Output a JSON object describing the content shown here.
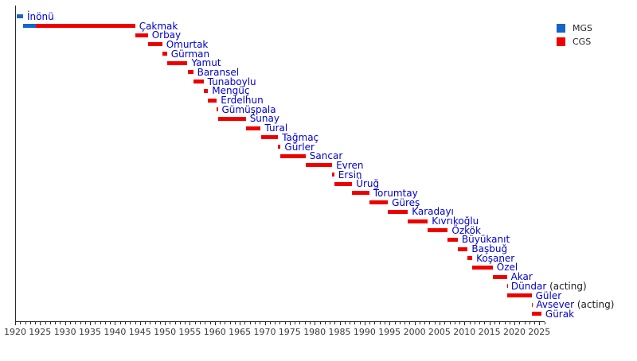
{
  "chart_data": {
    "type": "bar",
    "variant": "horizontal-timeline-gantt",
    "title": "",
    "xlabel": "",
    "ylabel": "",
    "grid": false,
    "xlim": [
      1920,
      2026
    ],
    "x_major_tick_step": 5,
    "x_minor_tick_step": 1,
    "x_major_tick_labels": [
      "1920",
      "1925",
      "1930",
      "1935",
      "1940",
      "1945",
      "1950",
      "1955",
      "1960",
      "1965",
      "1970",
      "1975",
      "1980",
      "1985",
      "1990",
      "1995",
      "2000",
      "2005",
      "2010",
      "2015",
      "2020",
      "2025"
    ],
    "colors": {
      "mgs": "#1565c8",
      "cgs": "#ee0000",
      "name_text": "#0000cc",
      "suffix_text": "#1a1a1a",
      "axis": "#2a2a2a",
      "tick_text": "#3a3a3a",
      "background": "#ffffff"
    },
    "legend": {
      "position": "top-right",
      "entries": [
        {
          "label": "MGS",
          "color": "#1565c8"
        },
        {
          "label": "CGS",
          "color": "#ee0000"
        }
      ]
    },
    "rows": [
      {
        "name": "İnönü",
        "suffix": "",
        "segments": [
          {
            "type": "MGS",
            "start": 1920.35,
            "end": 1921.6
          }
        ]
      },
      {
        "name": "Çakmak",
        "suffix": "",
        "segments": [
          {
            "type": "MGS",
            "start": 1921.6,
            "end": 1924.17
          },
          {
            "type": "CGS",
            "start": 1924.17,
            "end": 1944.04
          }
        ]
      },
      {
        "name": "Orbay",
        "suffix": "",
        "segments": [
          {
            "type": "CGS",
            "start": 1944.04,
            "end": 1946.58
          }
        ]
      },
      {
        "name": "Omurtak",
        "suffix": "",
        "segments": [
          {
            "type": "CGS",
            "start": 1946.58,
            "end": 1949.45
          }
        ]
      },
      {
        "name": "Gürman",
        "suffix": "",
        "segments": [
          {
            "type": "CGS",
            "start": 1949.45,
            "end": 1950.43
          }
        ]
      },
      {
        "name": "Yamut",
        "suffix": "",
        "segments": [
          {
            "type": "CGS",
            "start": 1950.43,
            "end": 1954.53
          }
        ]
      },
      {
        "name": "Baransel",
        "suffix": "",
        "segments": [
          {
            "type": "CGS",
            "start": 1954.53,
            "end": 1955.66
          }
        ]
      },
      {
        "name": "Tunaboylu",
        "suffix": "",
        "segments": [
          {
            "type": "CGS",
            "start": 1955.66,
            "end": 1957.73
          }
        ]
      },
      {
        "name": "Mengüç",
        "suffix": "",
        "segments": [
          {
            "type": "CGS",
            "start": 1957.73,
            "end": 1958.64
          }
        ]
      },
      {
        "name": "Erdelhun",
        "suffix": "",
        "segments": [
          {
            "type": "CGS",
            "start": 1958.64,
            "end": 1960.4
          }
        ]
      },
      {
        "name": "Gümüşpala",
        "suffix": "",
        "segments": [
          {
            "type": "CGS",
            "start": 1960.42,
            "end": 1960.59
          }
        ]
      },
      {
        "name": "Sunay",
        "suffix": "",
        "segments": [
          {
            "type": "CGS",
            "start": 1960.59,
            "end": 1966.21
          }
        ]
      },
      {
        "name": "Tural",
        "suffix": "",
        "segments": [
          {
            "type": "CGS",
            "start": 1966.21,
            "end": 1969.21
          }
        ]
      },
      {
        "name": "Tağmaç",
        "suffix": "",
        "segments": [
          {
            "type": "CGS",
            "start": 1969.21,
            "end": 1972.66
          }
        ]
      },
      {
        "name": "Gürler",
        "suffix": "",
        "segments": [
          {
            "type": "CGS",
            "start": 1972.66,
            "end": 1973.18
          }
        ]
      },
      {
        "name": "Sancar",
        "suffix": "",
        "segments": [
          {
            "type": "CGS",
            "start": 1973.18,
            "end": 1978.18
          }
        ]
      },
      {
        "name": "Evren",
        "suffix": "",
        "segments": [
          {
            "type": "CGS",
            "start": 1978.18,
            "end": 1983.5
          }
        ]
      },
      {
        "name": "Ersin",
        "suffix": "",
        "segments": [
          {
            "type": "CGS",
            "start": 1983.5,
            "end": 1983.93
          }
        ]
      },
      {
        "name": "Üruğ",
        "suffix": "",
        "segments": [
          {
            "type": "CGS",
            "start": 1983.93,
            "end": 1987.5
          }
        ]
      },
      {
        "name": "Torumtay",
        "suffix": "",
        "segments": [
          {
            "type": "CGS",
            "start": 1987.5,
            "end": 1990.92
          }
        ]
      },
      {
        "name": "Güreş",
        "suffix": "",
        "segments": [
          {
            "type": "CGS",
            "start": 1990.92,
            "end": 1994.66
          }
        ]
      },
      {
        "name": "Karadayı",
        "suffix": "",
        "segments": [
          {
            "type": "CGS",
            "start": 1994.66,
            "end": 1998.66
          }
        ]
      },
      {
        "name": "Kıvrıkoğlu",
        "suffix": "",
        "segments": [
          {
            "type": "CGS",
            "start": 1998.66,
            "end": 2002.66
          }
        ]
      },
      {
        "name": "Özkök",
        "suffix": "",
        "segments": [
          {
            "type": "CGS",
            "start": 2002.66,
            "end": 2006.66
          }
        ]
      },
      {
        "name": "Büyükanıt",
        "suffix": "",
        "segments": [
          {
            "type": "CGS",
            "start": 2006.66,
            "end": 2008.66
          }
        ]
      },
      {
        "name": "Başbuğ",
        "suffix": "",
        "segments": [
          {
            "type": "CGS",
            "start": 2008.66,
            "end": 2010.65
          }
        ]
      },
      {
        "name": "Koşaner",
        "suffix": "",
        "segments": [
          {
            "type": "CGS",
            "start": 2010.65,
            "end": 2011.57
          }
        ]
      },
      {
        "name": "Özel",
        "suffix": "",
        "segments": [
          {
            "type": "CGS",
            "start": 2011.59,
            "end": 2015.66
          }
        ]
      },
      {
        "name": "Akar",
        "suffix": "",
        "segments": [
          {
            "type": "CGS",
            "start": 2015.66,
            "end": 2018.5
          }
        ]
      },
      {
        "name": "Dündar",
        "suffix": " (acting)",
        "segments": [
          {
            "type": "CGS",
            "start": 2018.5,
            "end": 2018.55
          }
        ]
      },
      {
        "name": "Güler",
        "suffix": "",
        "segments": [
          {
            "type": "CGS",
            "start": 2018.55,
            "end": 2023.44
          }
        ]
      },
      {
        "name": "Avsever",
        "suffix": " (acting)",
        "segments": [
          {
            "type": "CGS",
            "start": 2023.44,
            "end": 2023.58
          }
        ]
      },
      {
        "name": "Gürak",
        "suffix": "",
        "segments": [
          {
            "type": "CGS",
            "start": 2023.58,
            "end": 2025.4
          }
        ]
      }
    ]
  }
}
